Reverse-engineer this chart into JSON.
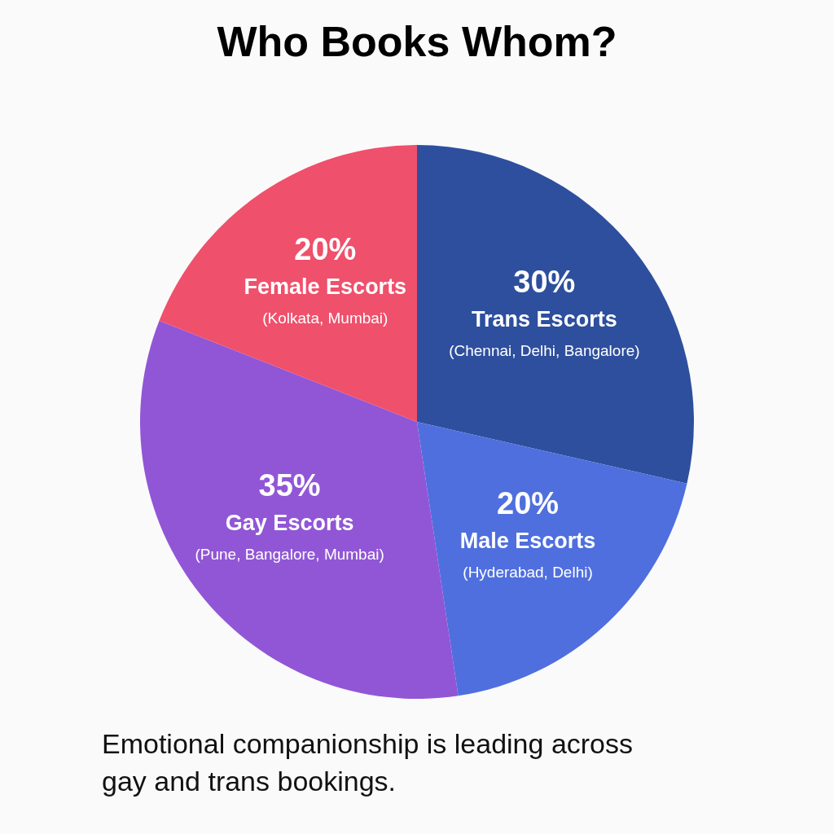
{
  "chart_data": {
    "type": "pie",
    "title": "Who Books Whom?",
    "categories": [
      "Trans Escorts",
      "Male Escorts",
      "Gay Escorts",
      "Female Escorts"
    ],
    "values": [
      30,
      20,
      35,
      20
    ],
    "value_labels": [
      "30%",
      "20%",
      "35%",
      "20%"
    ],
    "colors": [
      "#2e4f9e",
      "#4f6fde",
      "#9156d6",
      "#ef506b"
    ],
    "legend": false,
    "annotations": [
      {
        "text": "(Chennai, Delhi, Bangalore)",
        "x": "Trans Escorts"
      },
      {
        "text": "(Hyderabad, Delhi)",
        "x": "Male Escorts"
      },
      {
        "text": "(Pune, Bangalore, Mumbai)",
        "x": "Gay Escorts"
      },
      {
        "text": "(Kolkata, Mumbai)",
        "x": "Female Escorts"
      },
      "Emotional companionship is leading across gay and trans bookings."
    ]
  }
}
